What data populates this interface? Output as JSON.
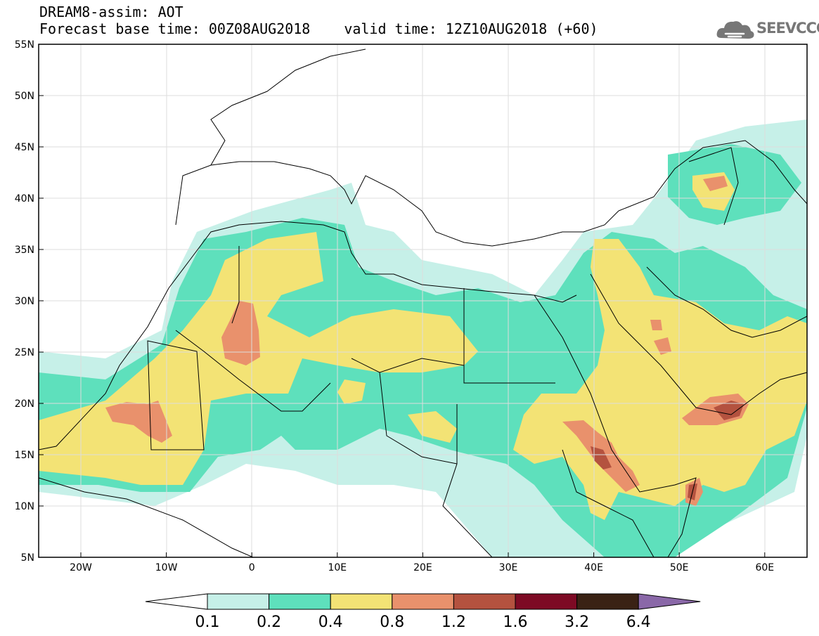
{
  "title": {
    "line1": "DREAM8-assim: AOT",
    "base_time": "Forecast base time: 00Z08AUG2018",
    "valid_time": "valid time: 12Z10AUG2018 (+60)"
  },
  "logo": {
    "text": "SEEVCCC",
    "icon": "cloud-icon"
  },
  "map": {
    "lat_ticks": [
      "55N",
      "50N",
      "45N",
      "40N",
      "35N",
      "30N",
      "25N",
      "20N",
      "15N",
      "10N",
      "5N"
    ],
    "lon_ticks": [
      "20W",
      "10W",
      "0",
      "10E",
      "20E",
      "30E",
      "40E",
      "50E",
      "60E"
    ]
  },
  "colorbar": {
    "labels": [
      "0.1",
      "0.2",
      "0.4",
      "0.8",
      "1.2",
      "1.6",
      "3.2",
      "6.4"
    ],
    "colors": [
      "#c6f0e8",
      "#5ee0bc",
      "#f3e375",
      "#e9916c",
      "#b4523f",
      "#7d0a24",
      "#3a2214",
      "#8a68a8"
    ],
    "under_color": "#ffffff"
  },
  "palette": {
    "ocean": "#ffffff",
    "grid": "#dddddd",
    "coast": "#000000"
  }
}
